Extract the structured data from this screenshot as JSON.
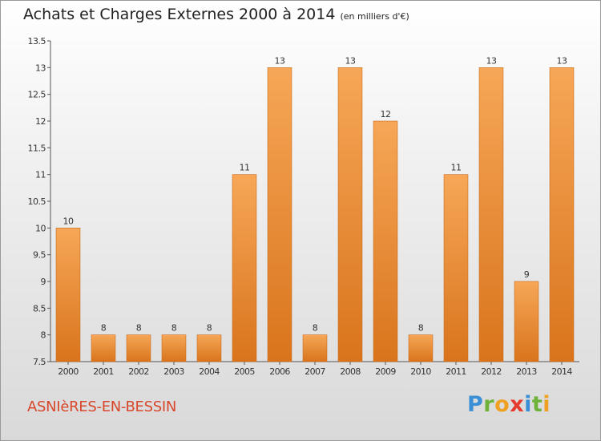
{
  "header": {
    "title": "Achats et Charges Externes 2000 à 2014",
    "unit": "(en milliers d'€)"
  },
  "footer": {
    "place": "ASNIèRES-EN-BESSIN",
    "brand_letters": [
      "P",
      "r",
      "o",
      "x",
      "i",
      "t",
      "i"
    ],
    "brand_colors": [
      "#3a8fd6",
      "#6fb23a",
      "#f0a020",
      "#e63a2e",
      "#3a8fd6",
      "#6fb23a",
      "#f0a020"
    ]
  },
  "chart_data": {
    "type": "bar",
    "title": "Achats et Charges Externes 2000 à 2014",
    "subtitle": "(en milliers d'€)",
    "categories": [
      "2000",
      "2001",
      "2002",
      "2003",
      "2004",
      "2005",
      "2006",
      "2007",
      "2008",
      "2009",
      "2010",
      "2011",
      "2012",
      "2013",
      "2014"
    ],
    "values": [
      10,
      8,
      8,
      8,
      8,
      11,
      13,
      8,
      13,
      12,
      8,
      11,
      13,
      9,
      13
    ],
    "data_labels": [
      "10",
      "8",
      "8",
      "8",
      "8",
      "11",
      "13",
      "8",
      "13",
      "12",
      "8",
      "11",
      "13",
      "9",
      "13"
    ],
    "y_ticks": [
      7.5,
      8,
      8.5,
      9,
      9.5,
      10,
      10.5,
      11,
      11.5,
      12,
      12.5,
      13,
      13.5
    ],
    "y_tick_labels": [
      "7.5",
      "8",
      "8.5",
      "9",
      "9.5",
      "10",
      "10.5",
      "11",
      "11.5",
      "12",
      "12.5",
      "13",
      "13.5"
    ],
    "ylim": [
      7.5,
      13.5
    ],
    "grid": false,
    "bar_color": "#f08a28",
    "bar_color_light": "#f6a757",
    "bar_color_dark": "#d9741c"
  }
}
